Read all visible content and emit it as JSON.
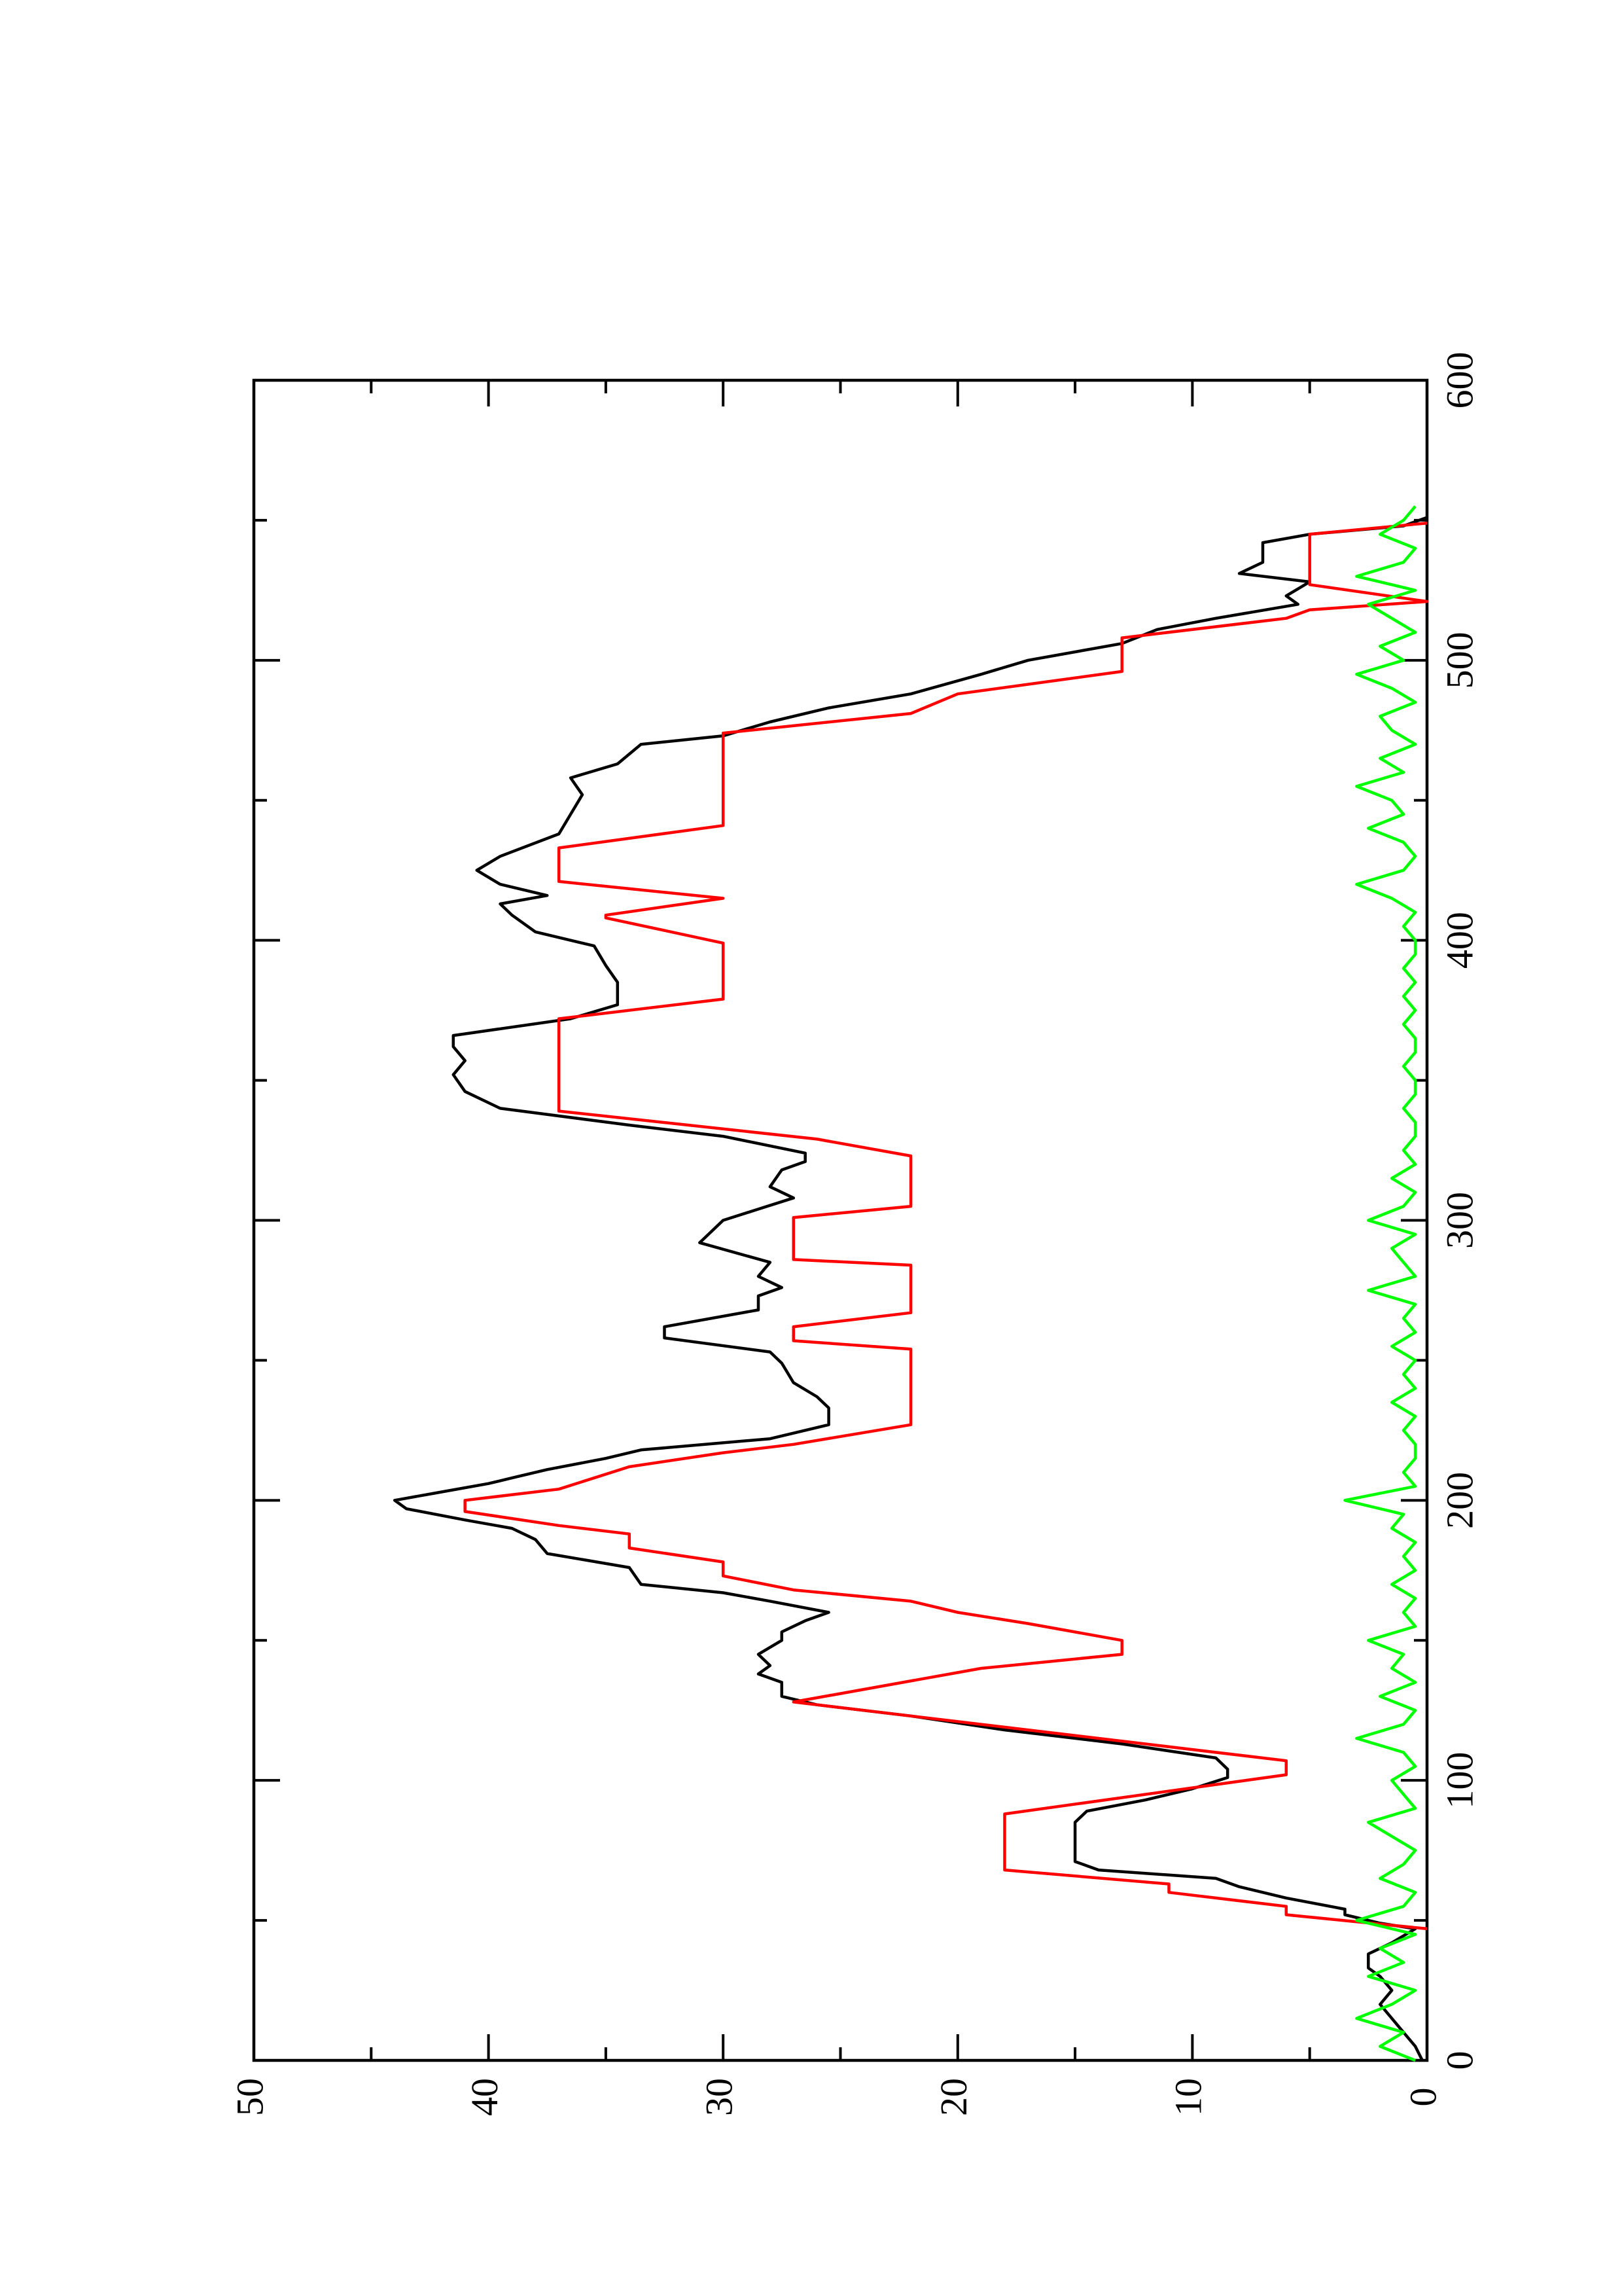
{
  "chart_data": {
    "type": "line",
    "orientation": "rotated",
    "xlim": [
      0,
      600
    ],
    "xticks": [
      0,
      100,
      200,
      300,
      400,
      500,
      600
    ],
    "xminorticks": [
      50,
      150,
      250,
      350,
      450,
      550
    ],
    "ylim": [
      0,
      50
    ],
    "yticks": [
      0,
      10,
      20,
      30,
      40,
      50
    ],
    "yminorticks": [
      5,
      15,
      25,
      35,
      45
    ],
    "series": [
      {
        "color": "#000000",
        "x": [
          0,
          5,
          10,
          15,
          20,
          25,
          30,
          33,
          38,
          42,
          47,
          49,
          52,
          54,
          58,
          62,
          65,
          68,
          71,
          78,
          85,
          89,
          93,
          97,
          101,
          104,
          108,
          113,
          118,
          123,
          127,
          130,
          135,
          138,
          141,
          145,
          150,
          153,
          157,
          160,
          164,
          167,
          170,
          176,
          181,
          186,
          190,
          193,
          197,
          200,
          203,
          206,
          208,
          211,
          215,
          218,
          222,
          227,
          233,
          237,
          242,
          249,
          253,
          258,
          262,
          268,
          273,
          276,
          280,
          285,
          292,
          300,
          304,
          308,
          312,
          318,
          321,
          324,
          330,
          334,
          340,
          346,
          352,
          357,
          362,
          366,
          372,
          377,
          385,
          391,
          398,
          403,
          409,
          413,
          416,
          420,
          425,
          430,
          438,
          445,
          452,
          458,
          463,
          470,
          473,
          478,
          483,
          488,
          495,
          500,
          506,
          511,
          515,
          520,
          523,
          528,
          531,
          535,
          542,
          545,
          548,
          551
        ],
        "values": [
          0.2,
          0.5,
          1,
          1.5,
          2,
          1.5,
          2,
          2.5,
          2.5,
          1.5,
          0.5,
          2,
          3.5,
          3.5,
          6,
          8,
          9,
          14,
          15,
          15,
          15,
          14.5,
          12,
          10,
          8.5,
          8.5,
          9,
          13,
          18,
          22,
          26,
          27.5,
          27.5,
          28.5,
          28,
          28.5,
          27.5,
          27.5,
          26.5,
          25.5,
          28,
          30,
          33.5,
          34,
          37.5,
          38,
          39,
          41,
          43.5,
          44,
          42,
          40,
          39,
          37.5,
          35,
          33.5,
          28,
          25.5,
          25.5,
          26,
          27,
          27.5,
          28,
          32.5,
          32.5,
          28.5,
          28.5,
          27.5,
          28.5,
          28,
          31,
          30,
          28.5,
          27,
          28,
          27.5,
          26.5,
          26.5,
          30,
          34,
          39.5,
          41,
          41.5,
          41,
          41.5,
          41.5,
          36.5,
          34.5,
          34.5,
          35,
          35.5,
          38,
          39,
          39.5,
          37.5,
          39.5,
          40.5,
          39.5,
          37,
          36.5,
          36,
          36.5,
          34.5,
          33.5,
          30,
          28,
          25.5,
          22,
          19,
          17,
          13,
          11.5,
          9,
          5.5,
          6,
          5,
          8,
          7,
          7,
          5,
          1,
          0
        ]
      },
      {
        "color": "#ff0000",
        "x": [
          47,
          52,
          55,
          60,
          63,
          68,
          88,
          102,
          107,
          128,
          140,
          145,
          150,
          156,
          160,
          164,
          168,
          173,
          178,
          183,
          188,
          191,
          196,
          200,
          204,
          212,
          217,
          220,
          227,
          254,
          257,
          262,
          267,
          284,
          286,
          301,
          305,
          323,
          329,
          339,
          372,
          379,
          399,
          408,
          409,
          415,
          421,
          433,
          441,
          474,
          481,
          488,
          496,
          508,
          515,
          518,
          521,
          527,
          545,
          549
        ],
        "values": [
          0,
          6,
          6,
          11,
          11,
          18,
          18,
          6,
          6,
          27,
          19,
          13,
          13,
          17,
          20,
          22,
          27,
          30,
          30,
          34,
          34,
          37,
          41,
          41,
          37,
          34,
          30,
          27,
          22,
          22,
          27,
          27,
          22,
          22,
          27,
          27,
          22,
          22,
          26,
          37,
          37,
          30,
          30,
          35,
          35,
          30,
          37,
          37,
          30,
          30,
          22,
          20,
          13,
          13,
          6,
          5,
          0,
          5,
          5,
          0
        ]
      },
      {
        "color": "#00ff00",
        "x": [
          0,
          5,
          10,
          15,
          20,
          25,
          30,
          35,
          40,
          45,
          50,
          55,
          60,
          65,
          70,
          75,
          80,
          85,
          90,
          95,
          100,
          105,
          110,
          115,
          120,
          125,
          130,
          135,
          140,
          145,
          150,
          155,
          160,
          165,
          170,
          175,
          180,
          185,
          190,
          195,
          200,
          205,
          210,
          215,
          220,
          225,
          230,
          235,
          240,
          245,
          250,
          255,
          260,
          265,
          270,
          275,
          280,
          285,
          290,
          295,
          300,
          305,
          310,
          315,
          320,
          325,
          330,
          335,
          340,
          345,
          350,
          355,
          360,
          365,
          370,
          375,
          380,
          385,
          390,
          395,
          400,
          405,
          410,
          415,
          420,
          425,
          430,
          435,
          440,
          445,
          450,
          455,
          460,
          465,
          470,
          475,
          480,
          485,
          490,
          495,
          500,
          505,
          510,
          515,
          520,
          525,
          530,
          535,
          540,
          545,
          550,
          555
        ],
        "values": [
          0.5,
          2,
          1,
          3,
          1.5,
          0.5,
          2.5,
          1,
          2,
          0.5,
          3,
          1,
          0.5,
          2,
          1,
          0.5,
          1.5,
          2.5,
          0.5,
          1,
          1.5,
          0.5,
          1,
          3,
          1,
          0.5,
          2,
          0.5,
          1.5,
          1,
          2.5,
          0.5,
          1,
          0.5,
          1.5,
          0.5,
          1,
          0.5,
          1.5,
          1,
          3.5,
          0.5,
          1,
          0.5,
          0.5,
          1,
          0.5,
          1.5,
          0.5,
          1,
          0.5,
          1.5,
          0.5,
          1,
          0.5,
          2.5,
          0.5,
          1,
          1.5,
          0.5,
          2.5,
          1,
          0.5,
          1.5,
          0.5,
          1,
          0.5,
          0.5,
          1,
          0.5,
          0.5,
          1,
          0.5,
          0.5,
          1,
          0.5,
          1,
          0.5,
          1,
          0.5,
          0.5,
          1,
          0.5,
          1.5,
          3,
          1,
          0.5,
          1,
          2.5,
          1,
          1.5,
          3,
          1,
          2,
          0.5,
          1.5,
          2,
          0.5,
          1.5,
          3,
          1,
          2,
          0.5,
          1.5,
          2.5,
          0.5,
          3,
          1,
          0.5,
          2,
          1,
          0.5
        ]
      }
    ]
  }
}
